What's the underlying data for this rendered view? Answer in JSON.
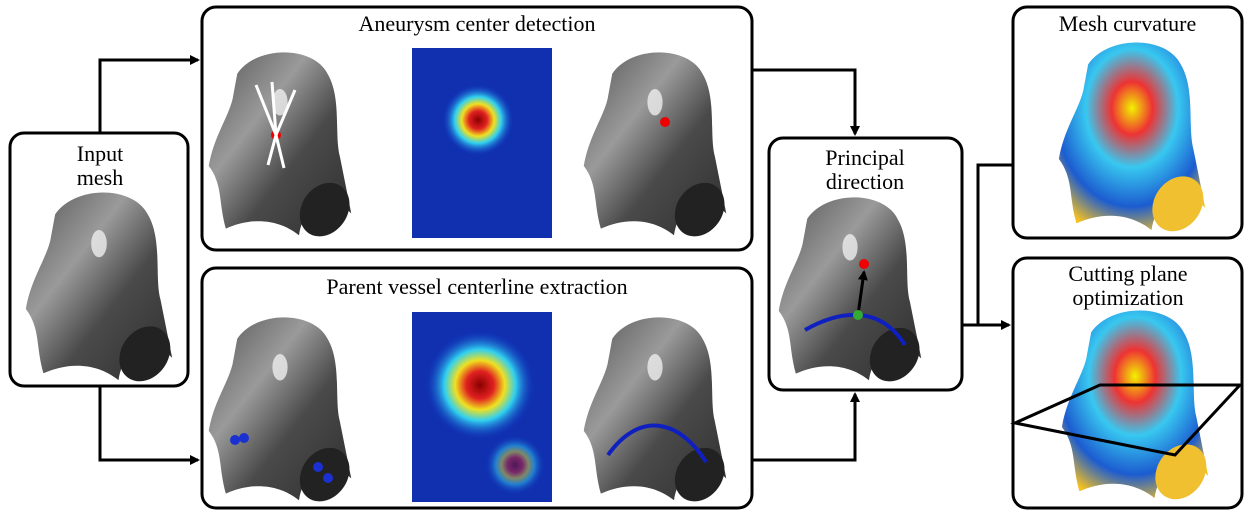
{
  "nodes": [
    {
      "label": "Input mesh"
    },
    {
      "label": "Aneurysm center detection"
    },
    {
      "label": "Parent vessel centerline extraction"
    },
    {
      "label": "Principal direction"
    },
    {
      "label": "Mesh curvature"
    },
    {
      "label": "Cutting plane optimization"
    }
  ]
}
